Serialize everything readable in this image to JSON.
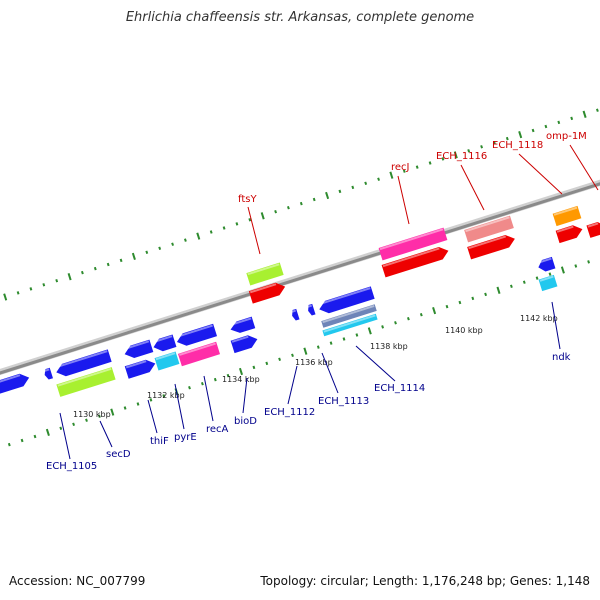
{
  "title": "Ehrlichia chaffeensis str. Arkansas, complete genome",
  "footer": {
    "accession": "Accession: NC_007799",
    "summary": "Topology: circular; Length: 1,176,248 bp; Genes: 1,148"
  },
  "colors": {
    "backbone": "#8a8a8a",
    "tick": "#2e8b2e",
    "label_upper": "#cc0000",
    "label_lower": "#00008b",
    "blue": "#1a1aee",
    "red": "#ee0000",
    "lime": "#a8f030",
    "pink": "#ff2da8",
    "salmon": "#f08a8a",
    "orange": "#ff9900",
    "cyan": "#22c8ee",
    "steel": "#6e84b8"
  },
  "ticks": [
    "1130 kbp",
    "1132 kbp",
    "1134 kbp",
    "1136 kbp",
    "1138 kbp",
    "1140 kbp",
    "1142 kbp"
  ],
  "gene_labels": [
    "ECH_1105",
    "secD",
    "thiF",
    "pyrE",
    "recA",
    "bioD",
    "ECH_1112",
    "ECH_1113",
    "ECH_1114",
    "ndk",
    "ftsY",
    "recJ",
    "ECH_1116",
    "ECH_1118",
    "omp-1M"
  ]
}
